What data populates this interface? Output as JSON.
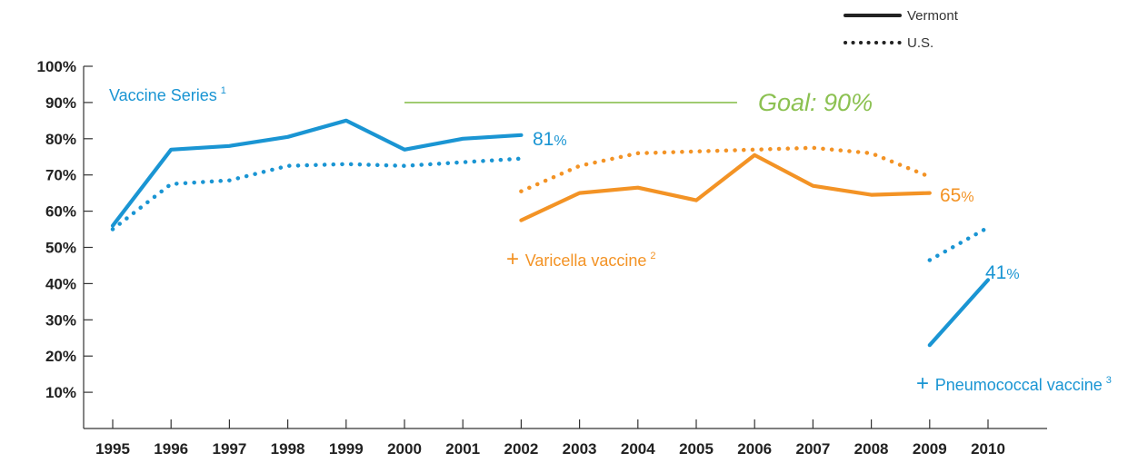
{
  "chart_data": {
    "type": "line",
    "title": "",
    "xlabel": "",
    "ylabel": "",
    "x": [
      1995,
      1996,
      1997,
      1998,
      1999,
      2000,
      2001,
      2002,
      2003,
      2004,
      2005,
      2006,
      2007,
      2008,
      2009,
      2010
    ],
    "x_tick_labels": [
      "1995",
      "1996",
      "1997",
      "1998",
      "1999",
      "2000",
      "2001",
      "2002",
      "2003",
      "2004",
      "2005",
      "2006",
      "2007",
      "2008",
      "2009",
      "2010"
    ],
    "ylim": [
      0,
      100
    ],
    "y_ticks": [
      10,
      20,
      30,
      40,
      50,
      60,
      70,
      80,
      90,
      100
    ],
    "y_tick_labels": [
      "10%",
      "20%",
      "30%",
      "40%",
      "50%",
      "60%",
      "70%",
      "80%",
      "90%",
      "100%"
    ],
    "grid": false,
    "legend_position": "top-right",
    "legend": [
      {
        "label": "Vermont",
        "style": "solid"
      },
      {
        "label": "U.S.",
        "style": "dotted"
      }
    ],
    "series": [
      {
        "group": "vaccine-series",
        "style": "solid",
        "color": "#1a95d3",
        "x": [
          1995,
          1996,
          1997,
          1998,
          1999,
          2000,
          2001,
          2002
        ],
        "values": [
          56,
          77,
          78,
          80.5,
          85,
          77,
          80,
          81
        ]
      },
      {
        "group": "vaccine-series",
        "style": "dotted",
        "color": "#1a95d3",
        "x": [
          1995,
          1996,
          1997,
          1998,
          1999,
          2000,
          2001,
          2002
        ],
        "values": [
          55,
          67.5,
          68.5,
          72.5,
          73,
          72.5,
          73.5,
          74.5
        ]
      },
      {
        "group": "varicella",
        "style": "solid",
        "color": "#f39325",
        "x": [
          2002,
          2003,
          2004,
          2005,
          2006,
          2007,
          2008,
          2009
        ],
        "values": [
          57.5,
          65,
          66.5,
          63,
          75.5,
          67,
          64.5,
          65
        ]
      },
      {
        "group": "varicella",
        "style": "dotted",
        "color": "#f39325",
        "x": [
          2002,
          2003,
          2004,
          2005,
          2006,
          2007,
          2008,
          2009
        ],
        "values": [
          65.5,
          72.5,
          76,
          76.5,
          77,
          77.5,
          76,
          69.5
        ]
      },
      {
        "group": "pneumococcal",
        "style": "solid",
        "color": "#1a95d3",
        "x": [
          2009,
          2010
        ],
        "values": [
          23,
          41
        ]
      },
      {
        "group": "pneumococcal",
        "style": "dotted",
        "color": "#1a95d3",
        "x": [
          2009,
          2010
        ],
        "values": [
          46.5,
          55.5
        ]
      }
    ],
    "goal": {
      "value": 90,
      "x_start": 2000,
      "x_end": 2005.7,
      "label": "Goal: 90%",
      "color": "#8cc152"
    },
    "annotations": [
      {
        "key": "vaccine_series",
        "text": "Vaccine Series",
        "sup": "1",
        "prefix": "",
        "color": "#1a95d3"
      },
      {
        "key": "varicella",
        "text": "Varicella vaccine",
        "sup": "2",
        "prefix": "+",
        "color": "#f39325"
      },
      {
        "key": "pneumococcal",
        "text": "Pneumococcal vaccine",
        "sup": "3",
        "prefix": "+",
        "color": "#1a95d3"
      }
    ],
    "end_labels": [
      {
        "key": "vaccine_series",
        "value": "81",
        "unit": "%",
        "color": "#1a95d3"
      },
      {
        "key": "varicella",
        "value": "65",
        "unit": "%",
        "color": "#f39325"
      },
      {
        "key": "pneumococcal",
        "value": "41",
        "unit": "%",
        "color": "#1a95d3"
      }
    ]
  }
}
